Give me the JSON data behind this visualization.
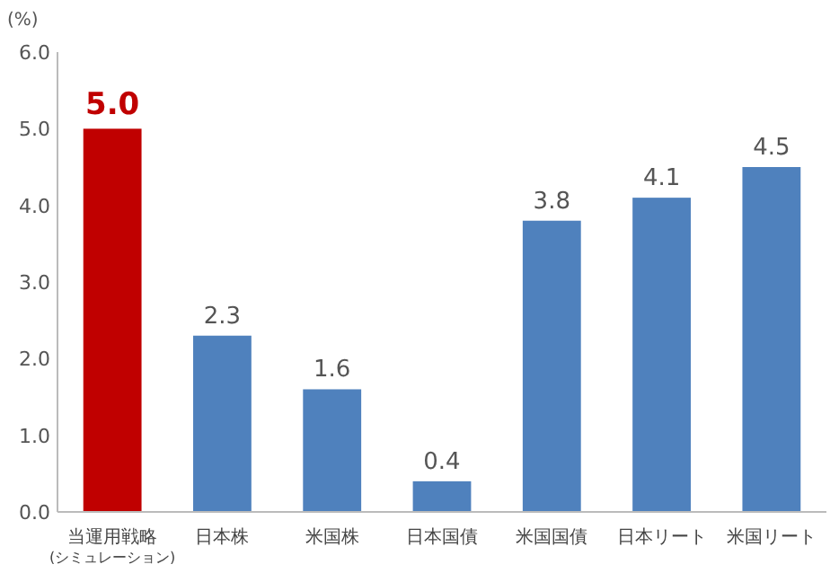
{
  "chart_data": {
    "type": "bar",
    "ylabel": "(%)",
    "categories": [
      "当運用戦略\n(シミュレーション)",
      "日本株",
      "米国株",
      "日本国債",
      "米国国債",
      "日本リート",
      "米国リート"
    ],
    "values": [
      5.0,
      2.3,
      1.6,
      0.4,
      3.8,
      4.1,
      4.5
    ],
    "colors": [
      "#c00000",
      "#4f81bd",
      "#4f81bd",
      "#4f81bd",
      "#4f81bd",
      "#4f81bd",
      "#4f81bd"
    ],
    "ylim": [
      0,
      6
    ],
    "yticks": [
      {
        "value": 0,
        "label": "0.0"
      },
      {
        "value": 1,
        "label": "1.0"
      },
      {
        "value": 2,
        "label": "2.0"
      },
      {
        "value": 3,
        "label": "3.0"
      },
      {
        "value": 4,
        "label": "4.0"
      },
      {
        "value": 5,
        "label": "5.0"
      },
      {
        "value": 6,
        "label": "6.0"
      }
    ],
    "value_labels": [
      "5.0",
      "2.3",
      "1.6",
      "0.4",
      "3.8",
      "4.1",
      "4.5"
    ]
  }
}
